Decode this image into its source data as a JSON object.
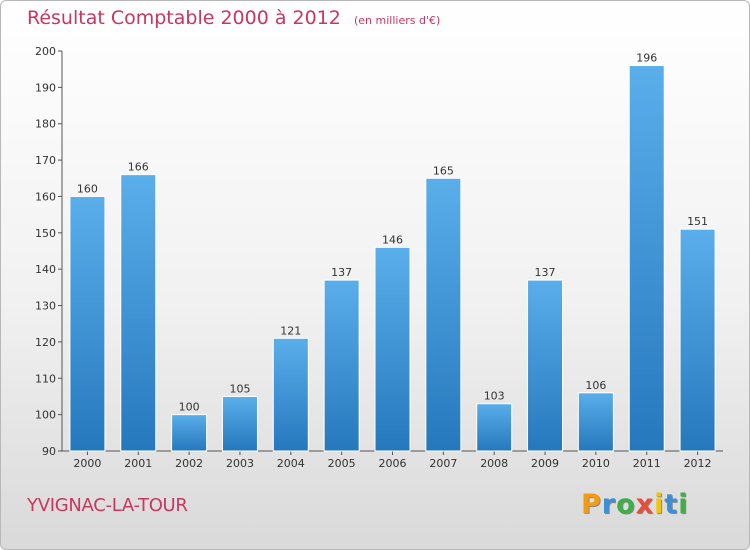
{
  "header": {
    "title": "Résultat Comptable 2000 à 2012",
    "subtitle": "(en milliers d'€)"
  },
  "footer": {
    "city": "YVIGNAC-LA-TOUR",
    "logo": {
      "letters": [
        "P",
        "r",
        "o",
        "x",
        "i",
        "t",
        "i"
      ],
      "colors": [
        "#f39c12",
        "#3a8fd6",
        "#3fae49",
        "#e74c3c",
        "#f1c40f",
        "#3a8fd6",
        "#3fae49"
      ]
    }
  },
  "chart_data": {
    "type": "bar",
    "categories": [
      "2000",
      "2001",
      "2002",
      "2003",
      "2004",
      "2005",
      "2006",
      "2007",
      "2008",
      "2009",
      "2010",
      "2011",
      "2012"
    ],
    "values": [
      160,
      166,
      100,
      105,
      121,
      137,
      146,
      165,
      103,
      137,
      106,
      196,
      151
    ],
    "ylim": [
      90,
      200
    ],
    "yticks": [
      90,
      100,
      110,
      120,
      130,
      140,
      150,
      160,
      170,
      180,
      190,
      200
    ],
    "grid": false,
    "bar_color_top": "#5aaeea",
    "bar_color_bottom": "#2678bd"
  }
}
